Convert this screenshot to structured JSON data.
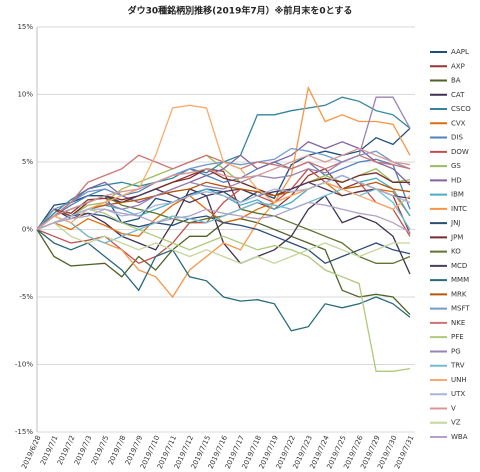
{
  "chart_data": {
    "type": "line",
    "title": "ダウ30種銘柄別推移(2019年7月）※前月末を0とする",
    "categories": [
      "2019/6/28",
      "2019/7/1",
      "2019/7/2",
      "2019/7/3",
      "2019/7/5",
      "2019/7/8",
      "2019/7/9",
      "2019/7/10",
      "2019/7/11",
      "2019/7/12",
      "2019/7/15",
      "2019/7/16",
      "2019/7/17",
      "2019/7/18",
      "2019/7/19",
      "2019/7/22",
      "2019/7/23",
      "2019/7/24",
      "2019/7/25",
      "2019/7/26",
      "2019/7/29",
      "2019/7/30",
      "2019/7/31"
    ],
    "ylim": [
      -15,
      15
    ],
    "yticks": [
      {
        "value": -15,
        "label": "-15%"
      },
      {
        "value": -10,
        "label": "-10%"
      },
      {
        "value": -5,
        "label": "-5%"
      },
      {
        "value": 0,
        "label": "0%"
      },
      {
        "value": 5,
        "label": "5%"
      },
      {
        "value": 10,
        "label": "10%"
      },
      {
        "value": 15,
        "label": "15%"
      }
    ],
    "grid": true,
    "legend": "right",
    "series": [
      {
        "name": "AAPL",
        "color": "#1f4e79",
        "values": [
          0,
          1.8,
          2.0,
          2.5,
          2.5,
          0.5,
          0.8,
          2.3,
          2.0,
          2.6,
          3.0,
          2.8,
          2.0,
          2.8,
          2.3,
          4.8,
          5.5,
          5.8,
          5.5,
          5.8,
          6.8,
          6.3,
          7.5
        ]
      },
      {
        "name": "AXP",
        "color": "#943634",
        "values": [
          0,
          1.5,
          1.2,
          2.2,
          2.3,
          2.0,
          2.5,
          3.0,
          3.5,
          4.0,
          4.5,
          4.3,
          1.5,
          2.0,
          1.5,
          2.5,
          4.0,
          4.5,
          3.0,
          3.5,
          3.0,
          2.5,
          -0.3
        ]
      },
      {
        "name": "BA",
        "color": "#4f6228",
        "values": [
          0,
          -2.0,
          -2.7,
          -2.6,
          -2.5,
          -3.5,
          -2.0,
          -3.0,
          -1.5,
          -0.5,
          -0.5,
          0.5,
          0.8,
          0.5,
          0.0,
          -0.5,
          -1.0,
          -1.5,
          -4.5,
          -5.0,
          -4.8,
          -5.0,
          -6.3
        ]
      },
      {
        "name": "CAT",
        "color": "#3f3151",
        "values": [
          0,
          1.5,
          0.8,
          1.2,
          0.5,
          -0.5,
          -1.0,
          -1.5,
          0.5,
          3.0,
          2.5,
          -1.0,
          -2.5,
          -2.0,
          -1.5,
          -0.5,
          1.5,
          2.5,
          0.5,
          1.0,
          0.5,
          -0.5,
          -3.3
        ]
      },
      {
        "name": "CSCO",
        "color": "#31849b",
        "values": [
          0,
          1.2,
          2.2,
          3.0,
          3.3,
          3.5,
          3.2,
          3.5,
          3.8,
          4.5,
          4.2,
          5.0,
          5.5,
          8.5,
          8.5,
          8.8,
          9.0,
          9.2,
          9.8,
          9.5,
          8.8,
          8.5,
          7.5
        ]
      },
      {
        "name": "CVX",
        "color": "#e36c09",
        "values": [
          0,
          0.5,
          0.0,
          0.8,
          0.3,
          -0.3,
          -0.5,
          0.8,
          1.8,
          2.5,
          1.5,
          0.5,
          0.8,
          1.5,
          2.0,
          2.5,
          3.0,
          3.5,
          2.5,
          2.8,
          3.0,
          2.8,
          1.0
        ]
      },
      {
        "name": "DIS",
        "color": "#4f81bd",
        "values": [
          0,
          1.0,
          1.8,
          2.5,
          3.0,
          2.5,
          2.8,
          3.5,
          4.0,
          4.5,
          4.0,
          3.5,
          3.8,
          4.5,
          5.0,
          4.5,
          5.0,
          4.0,
          4.5,
          5.0,
          5.2,
          4.8,
          1.5
        ]
      },
      {
        "name": "DOW",
        "color": "#c0504d",
        "values": [
          0,
          -0.5,
          -1.0,
          -0.8,
          -0.5,
          -1.5,
          -2.5,
          -2.0,
          -1.0,
          0.5,
          0.5,
          2.0,
          3.0,
          2.5,
          2.0,
          3.0,
          4.5,
          3.5,
          4.0,
          3.5,
          2.0,
          1.5,
          -0.5
        ]
      },
      {
        "name": "GS",
        "color": "#9bbb59",
        "values": [
          0,
          1.5,
          1.0,
          1.8,
          2.0,
          3.0,
          3.5,
          4.0,
          4.5,
          5.0,
          5.5,
          4.5,
          3.5,
          3.0,
          2.5,
          3.0,
          3.5,
          4.0,
          3.5,
          4.0,
          4.5,
          3.5,
          3.7
        ]
      },
      {
        "name": "HD",
        "color": "#8064a2",
        "values": [
          0,
          1.0,
          2.0,
          3.0,
          3.5,
          2.5,
          2.0,
          2.5,
          3.0,
          3.5,
          4.0,
          4.5,
          5.5,
          4.5,
          5.0,
          5.5,
          6.5,
          6.0,
          6.5,
          6.0,
          5.0,
          4.5,
          3.3
        ]
      },
      {
        "name": "IBM",
        "color": "#4bacc6",
        "values": [
          0,
          0.5,
          1.0,
          1.5,
          1.8,
          1.5,
          1.0,
          1.5,
          2.0,
          2.5,
          3.0,
          2.5,
          1.8,
          2.2,
          1.5,
          2.0,
          3.0,
          3.5,
          4.0,
          3.5,
          3.8,
          3.0,
          1.0
        ]
      },
      {
        "name": "INTC",
        "color": "#f79646",
        "values": [
          0,
          1.0,
          0.5,
          -0.5,
          -1.0,
          -1.5,
          -3.0,
          -3.5,
          -5.0,
          -3.0,
          -2.0,
          -1.0,
          -1.5,
          0.5,
          2.0,
          4.0,
          10.5,
          8.0,
          8.5,
          8.0,
          8.0,
          7.8,
          5.5
        ]
      },
      {
        "name": "JNJ",
        "color": "#2c4d75",
        "values": [
          0,
          0.5,
          1.0,
          1.2,
          1.0,
          0.5,
          0.2,
          0.5,
          0.3,
          0.8,
          1.0,
          0.5,
          0.3,
          0.0,
          -0.5,
          -1.0,
          -1.5,
          -2.5,
          -2.0,
          -1.5,
          -1.0,
          -1.5,
          -1.8
        ]
      },
      {
        "name": "JPM",
        "color": "#772c2a",
        "values": [
          0,
          1.5,
          1.0,
          2.0,
          2.5,
          2.2,
          2.5,
          3.0,
          3.5,
          3.8,
          4.5,
          3.8,
          3.5,
          3.0,
          2.5,
          3.0,
          3.5,
          3.8,
          3.5,
          4.0,
          4.2,
          3.5,
          3.5
        ]
      },
      {
        "name": "KO",
        "color": "#5f7530",
        "values": [
          0,
          1.0,
          1.5,
          2.0,
          2.5,
          1.8,
          1.5,
          1.2,
          0.8,
          0.5,
          0.8,
          1.0,
          1.5,
          1.2,
          1.0,
          0.5,
          0.0,
          -0.5,
          -1.0,
          -2.0,
          -2.5,
          -2.5,
          -2.0
        ]
      },
      {
        "name": "MCD",
        "color": "#4d3b62",
        "values": [
          0,
          1.0,
          1.5,
          2.0,
          2.5,
          2.0,
          2.5,
          3.0,
          2.5,
          2.0,
          2.5,
          2.8,
          3.0,
          2.5,
          2.8,
          3.0,
          3.5,
          3.0,
          2.5,
          2.8,
          3.0,
          2.5,
          2.3
        ]
      },
      {
        "name": "MMM",
        "color": "#276a7c",
        "values": [
          0,
          -1.0,
          -1.5,
          -1.0,
          -2.0,
          -3.0,
          -4.5,
          -2.0,
          -1.5,
          -3.5,
          -3.8,
          -5.0,
          -5.3,
          -5.2,
          -5.5,
          -7.5,
          -7.2,
          -5.5,
          -5.8,
          -5.5,
          -5.0,
          -5.5,
          -6.5
        ]
      },
      {
        "name": "MRK",
        "color": "#b65708",
        "values": [
          0,
          0.5,
          1.0,
          1.5,
          1.8,
          2.0,
          2.2,
          2.5,
          2.8,
          3.0,
          3.5,
          3.2,
          3.0,
          2.8,
          2.5,
          2.8,
          3.0,
          3.5,
          3.0,
          3.2,
          3.5,
          3.0,
          2.8
        ]
      },
      {
        "name": "MSFT",
        "color": "#729aca",
        "values": [
          0,
          1.5,
          2.0,
          2.8,
          3.0,
          2.5,
          3.0,
          3.5,
          4.0,
          4.5,
          4.8,
          5.0,
          4.8,
          5.0,
          5.2,
          6.0,
          5.8,
          5.5,
          5.0,
          5.5,
          5.8,
          5.0,
          4.5
        ]
      },
      {
        "name": "NKE",
        "color": "#cd7371",
        "values": [
          0,
          1.0,
          2.0,
          3.5,
          4.0,
          4.5,
          5.5,
          5.0,
          4.5,
          5.0,
          5.5,
          5.0,
          4.5,
          5.0,
          4.8,
          4.5,
          5.0,
          4.5,
          5.0,
          5.5,
          5.0,
          4.8,
          4.5
        ]
      },
      {
        "name": "PFE",
        "color": "#afc97a",
        "values": [
          0,
          0.5,
          1.0,
          1.5,
          1.2,
          0.5,
          0.0,
          -0.5,
          -1.0,
          -1.5,
          -1.0,
          -0.5,
          -1.0,
          -1.5,
          -1.2,
          -1.5,
          -2.0,
          -3.0,
          -3.5,
          -4.0,
          -10.5,
          -10.5,
          -10.3
        ]
      },
      {
        "name": "PG",
        "color": "#9983b5",
        "values": [
          0,
          0.5,
          1.0,
          1.5,
          2.0,
          1.5,
          1.8,
          2.5,
          3.0,
          3.5,
          3.2,
          3.0,
          3.5,
          4.0,
          3.8,
          4.0,
          4.5,
          4.2,
          5.0,
          5.5,
          9.8,
          9.8,
          7.5
        ]
      },
      {
        "name": "TRV",
        "color": "#6fbdd1",
        "values": [
          0,
          1.0,
          0.5,
          -0.5,
          -1.0,
          -0.5,
          0.0,
          0.5,
          1.0,
          0.8,
          0.5,
          1.0,
          1.5,
          2.0,
          1.8,
          1.5,
          2.0,
          2.5,
          3.0,
          2.5,
          3.0,
          2.0,
          0.0
        ]
      },
      {
        "name": "UNH",
        "color": "#f9ab6b",
        "values": [
          0,
          1.0,
          0.5,
          1.5,
          2.0,
          2.5,
          3.0,
          5.5,
          9.0,
          9.2,
          9.0,
          5.0,
          4.5,
          3.0,
          2.0,
          2.5,
          3.0,
          3.5,
          3.0,
          2.5,
          2.0,
          1.5,
          2.5
        ]
      },
      {
        "name": "UTX",
        "color": "#a5b6d8",
        "values": [
          0,
          0.5,
          1.0,
          1.5,
          1.5,
          1.0,
          1.2,
          1.8,
          2.0,
          2.5,
          2.8,
          2.5,
          2.0,
          2.5,
          3.0,
          2.8,
          3.0,
          3.5,
          4.0,
          3.5,
          3.0,
          2.5,
          2.0
        ]
      },
      {
        "name": "V",
        "color": "#d99694",
        "values": [
          0,
          1.0,
          1.5,
          2.0,
          2.5,
          2.8,
          3.0,
          3.5,
          4.0,
          4.2,
          4.5,
          4.0,
          3.8,
          4.0,
          4.5,
          5.0,
          5.5,
          5.0,
          5.5,
          6.0,
          5.5,
          5.0,
          4.8
        ]
      },
      {
        "name": "VZ",
        "color": "#c3d69b",
        "values": [
          0,
          0.5,
          -0.5,
          -1.0,
          -0.5,
          -1.0,
          -1.5,
          -1.0,
          -1.5,
          -2.0,
          -1.5,
          -2.0,
          -2.5,
          -2.0,
          -2.5,
          -2.0,
          -1.5,
          -1.0,
          -1.5,
          -2.0,
          -1.5,
          -1.0,
          -1.0
        ]
      },
      {
        "name": "WBA",
        "color": "#b3a2c7",
        "values": [
          0,
          0.5,
          0.8,
          1.0,
          1.5,
          1.2,
          1.0,
          0.5,
          0.8,
          1.0,
          1.5,
          1.2,
          1.0,
          0.8,
          1.0,
          1.5,
          2.0,
          1.8,
          1.5,
          1.2,
          1.0,
          0.5,
          -0.2
        ]
      }
    ]
  }
}
